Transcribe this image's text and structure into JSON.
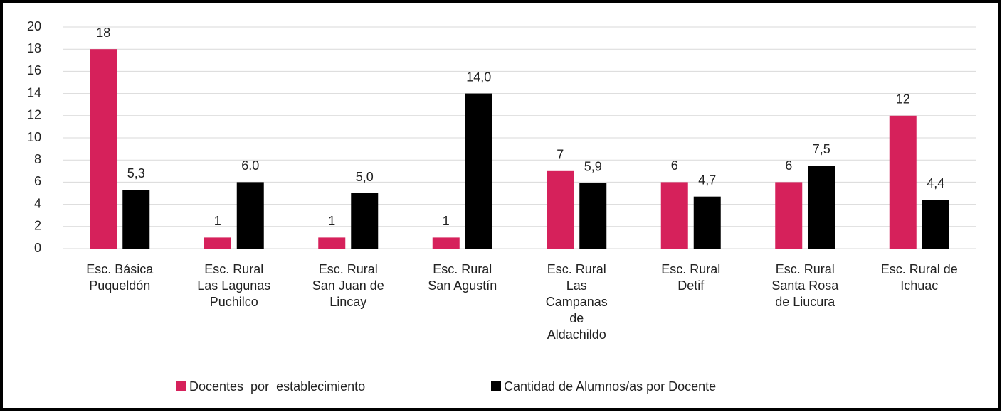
{
  "chart_data": {
    "type": "bar",
    "categories": [
      [
        "Esc. Básica",
        "Puqueldón"
      ],
      [
        "Esc. Rural",
        "Las Lagunas",
        "Puchilco"
      ],
      [
        "Esc. Rural",
        "San Juan de",
        "Lincay"
      ],
      [
        "Esc. Rural",
        "San Agustín"
      ],
      [
        "Esc. Rural",
        "Las",
        "Campanas",
        "de",
        "Aldachildo"
      ],
      [
        "Esc. Rural",
        "Detif"
      ],
      [
        "Esc. Rural",
        "Santa Rosa",
        "de Liucura"
      ],
      [
        "Esc. Rural de",
        "Ichuac"
      ]
    ],
    "series": [
      {
        "name": "Docentes  por  establecimiento",
        "color": "#d6215b",
        "values": [
          18,
          1,
          1,
          1,
          7,
          6,
          6,
          12
        ]
      },
      {
        "name": "Cantidad de Alumnos/as por Docente",
        "color": "#000000",
        "values": [
          5.3,
          6.0,
          5.0,
          14.0,
          5.9,
          4.7,
          7.5,
          4.4
        ],
        "value_labels": [
          "5,3",
          "6.0",
          "5,0",
          "14,0",
          "5,9",
          "4,7",
          "7,5",
          "4,4"
        ]
      }
    ],
    "ylim": [
      0,
      20
    ],
    "yticks": [
      0,
      2,
      4,
      6,
      8,
      10,
      12,
      14,
      16,
      18,
      20
    ],
    "grid": true,
    "legend": "bottom"
  }
}
